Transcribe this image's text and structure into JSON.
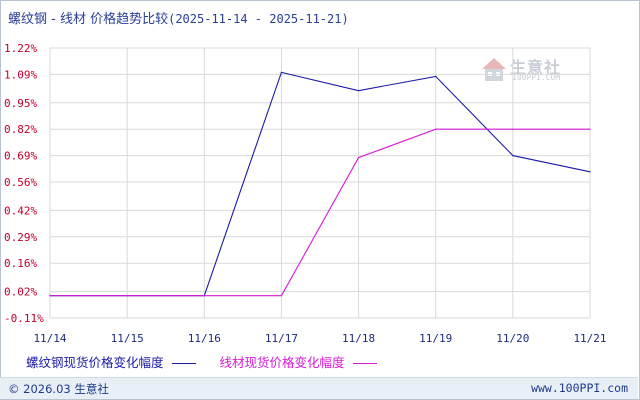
{
  "title": {
    "main": "螺纹钢 - 线材 价格趋势比较",
    "range": "(2025-11-14 - 2025-11-21)"
  },
  "watermark": {
    "cn": "生意社",
    "en": "100PPI.COM"
  },
  "legend": [
    {
      "label": "螺纹钢现货价格变化幅度",
      "color": "#1a1aa6"
    },
    {
      "label": "线材现货价格变化幅度",
      "color": "#d61ad6"
    }
  ],
  "footer": {
    "copyright": "© 2026.03 生意社",
    "site": "www.100PPI.com"
  },
  "chart_data": {
    "type": "line",
    "x": [
      "11/14",
      "11/15",
      "11/16",
      "11/17",
      "11/18",
      "11/19",
      "11/20",
      "11/21"
    ],
    "y_ticks": [
      "1.22%",
      "1.09%",
      "0.95%",
      "0.82%",
      "0.69%",
      "0.56%",
      "0.42%",
      "0.29%",
      "0.16%",
      "0.02%",
      "-0.11%"
    ],
    "ylim": [
      -0.11,
      1.22
    ],
    "grid": true,
    "series": [
      {
        "name": "螺纹钢现货价格变化幅度",
        "color": "#1a1aa6",
        "values": [
          0.0,
          0.0,
          0.0,
          1.1,
          1.01,
          1.08,
          0.69,
          0.61
        ]
      },
      {
        "name": "线材现货价格变化幅度",
        "color": "#d61ad6",
        "values": [
          0.0,
          0.0,
          0.0,
          0.0,
          0.68,
          0.82,
          0.82,
          0.82
        ]
      }
    ]
  }
}
